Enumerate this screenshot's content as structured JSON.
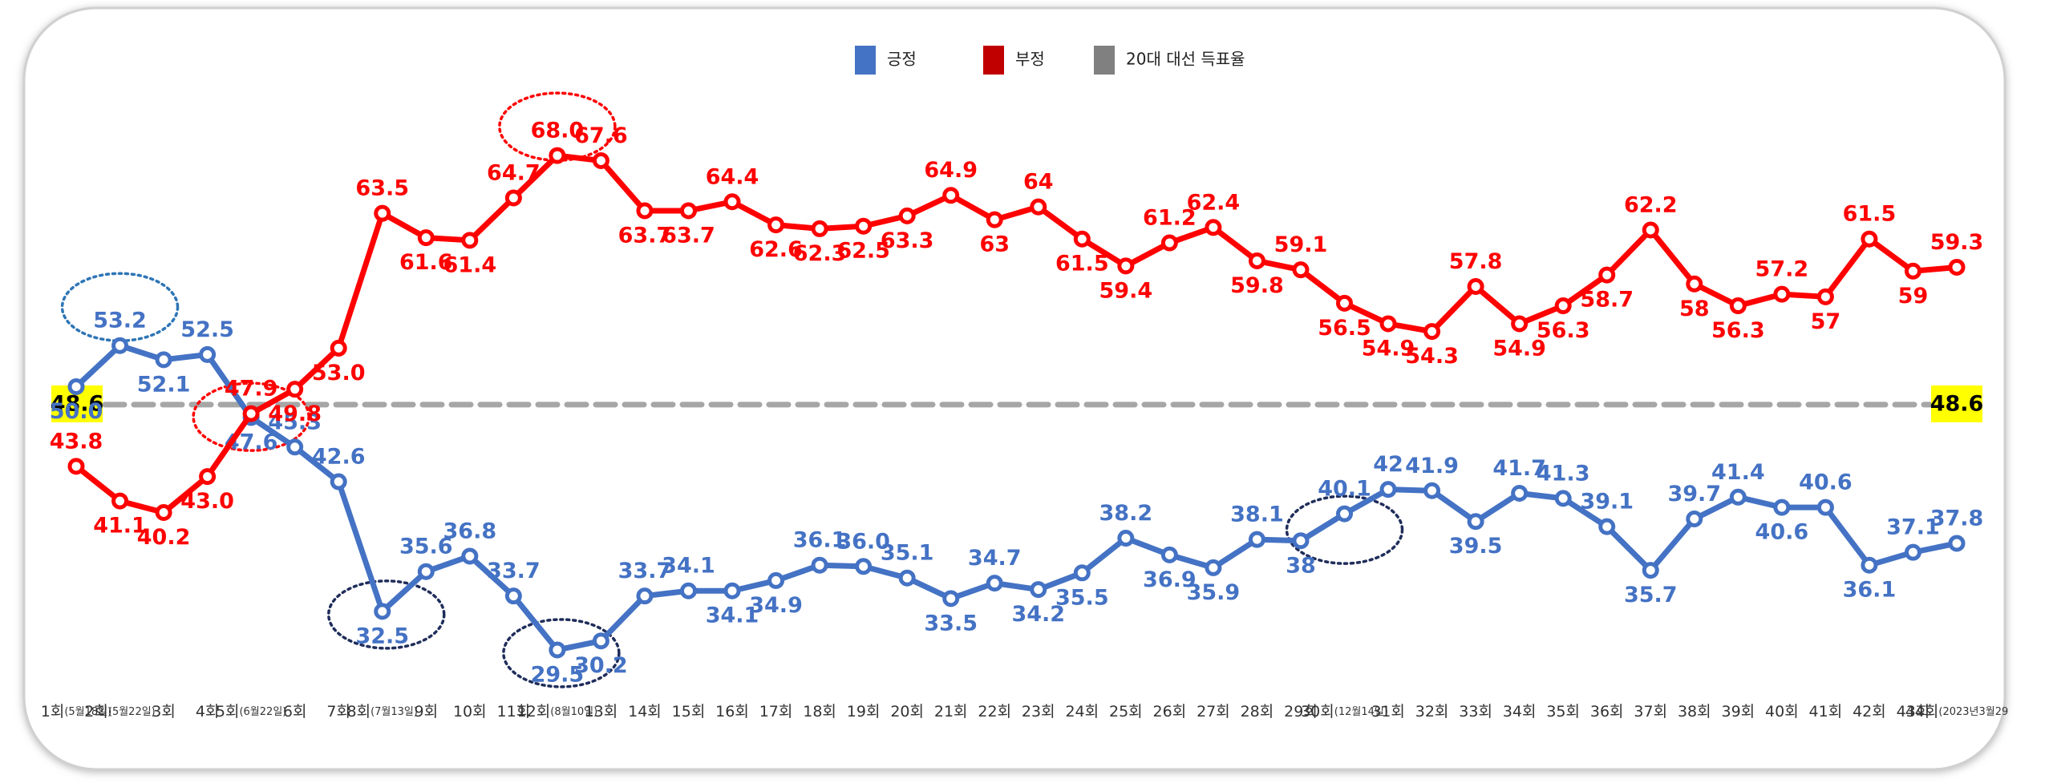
{
  "chart_data": {
    "type": "line",
    "categories": [
      "1회",
      "2회",
      "3회",
      "4회",
      "5회",
      "6회",
      "7회",
      "8회",
      "9회",
      "10회",
      "11회",
      "12회",
      "13회",
      "14회",
      "15회",
      "16회",
      "17회",
      "18회",
      "19회",
      "20회",
      "21회",
      "22회",
      "23회",
      "24회",
      "25회",
      "26회",
      "27회",
      "28회",
      "29회",
      "30회",
      "31회",
      "32회",
      "33회",
      "34회",
      "35회",
      "36회",
      "37회",
      "38회",
      "39회",
      "40회",
      "41회",
      "42회",
      "43회",
      "44회"
    ],
    "dates": [
      "(5월18일)",
      "(5월22일)",
      null,
      null,
      "(6월22일)",
      null,
      null,
      "(7월13일)",
      null,
      null,
      null,
      "(8월10일)",
      null,
      null,
      null,
      null,
      null,
      null,
      null,
      null,
      null,
      null,
      null,
      null,
      null,
      null,
      null,
      null,
      null,
      "(12월14일)",
      null,
      null,
      null,
      null,
      null,
      null,
      null,
      null,
      null,
      null,
      null,
      null,
      null,
      "(2023년3월29"
    ],
    "ylim": [
      27,
      71
    ],
    "series": [
      {
        "name": "긍정",
        "color": "#4472c4",
        "values": [
          50.0,
          53.2,
          52.1,
          52.5,
          47.6,
          45.3,
          42.6,
          32.5,
          35.6,
          36.8,
          33.7,
          29.5,
          30.2,
          33.7,
          34.1,
          34.1,
          34.9,
          36.1,
          36.0,
          35.1,
          33.5,
          34.7,
          34.2,
          35.5,
          38.2,
          36.9,
          35.9,
          38.1,
          38,
          40.1,
          42,
          41.9,
          39.5,
          41.7,
          41.3,
          39.1,
          35.7,
          39.7,
          41.4,
          40.6,
          40.6,
          36.1,
          37.1,
          37.8
        ],
        "value_labels": [
          "50.0",
          "53.2",
          "52.1",
          "52.5",
          "47.6",
          "45.3",
          "42.6",
          "32.5",
          "35.6",
          "36.8",
          "33.7",
          "29.5",
          "30.2",
          "33.7",
          "34.1",
          "34.1",
          "34.9",
          "36.1",
          "36.0",
          "35.1",
          "33.5",
          "34.7",
          "34.2",
          "35.5",
          "38.2",
          "36.9",
          "35.9",
          "38.1",
          "38",
          "40.1",
          "42",
          "41.9",
          "39.5",
          "41.7",
          "41.3",
          "39.1",
          "35.7",
          "39.7",
          "41.4",
          "40.6",
          "40.6",
          "36.1",
          "37.1",
          "37.8"
        ]
      },
      {
        "name": "부정",
        "color": "#ff0000",
        "values": [
          43.8,
          41.1,
          40.2,
          43.0,
          47.9,
          49.8,
          53.0,
          63.5,
          61.6,
          61.4,
          64.7,
          68.0,
          67.6,
          63.7,
          63.7,
          64.4,
          62.6,
          62.3,
          62.5,
          63.3,
          64.9,
          63,
          64,
          61.5,
          59.4,
          61.2,
          62.4,
          59.8,
          59.1,
          56.5,
          54.9,
          54.3,
          57.8,
          54.9,
          56.3,
          58.7,
          62.2,
          58,
          56.3,
          57.2,
          57,
          61.5,
          59,
          59.3
        ],
        "value_labels": [
          "43.8",
          "41.1",
          "40.2",
          "43.0",
          "47.9",
          "49.8",
          "53.0",
          "63.5",
          "61.6",
          "61.4",
          "64.7",
          "68.0",
          "67.6",
          "63.7",
          "63.7",
          "64.4",
          "62.6",
          "62.3",
          "62.5",
          "63.3",
          "64.9",
          "63",
          "64",
          "61.5",
          "59.4",
          "61.2",
          "62.4",
          "59.8",
          "59.1",
          "56.5",
          "54.9",
          "54.3",
          "57.8",
          "54.9",
          "56.3",
          "58.7",
          "62.2",
          "58",
          "56.3",
          "57.2",
          "57",
          "61.5",
          "59",
          "59.3"
        ]
      }
    ],
    "reference_line": {
      "name": "20대 대선 득표율",
      "value": 48.6,
      "color": "#a6a6a6"
    }
  }
}
